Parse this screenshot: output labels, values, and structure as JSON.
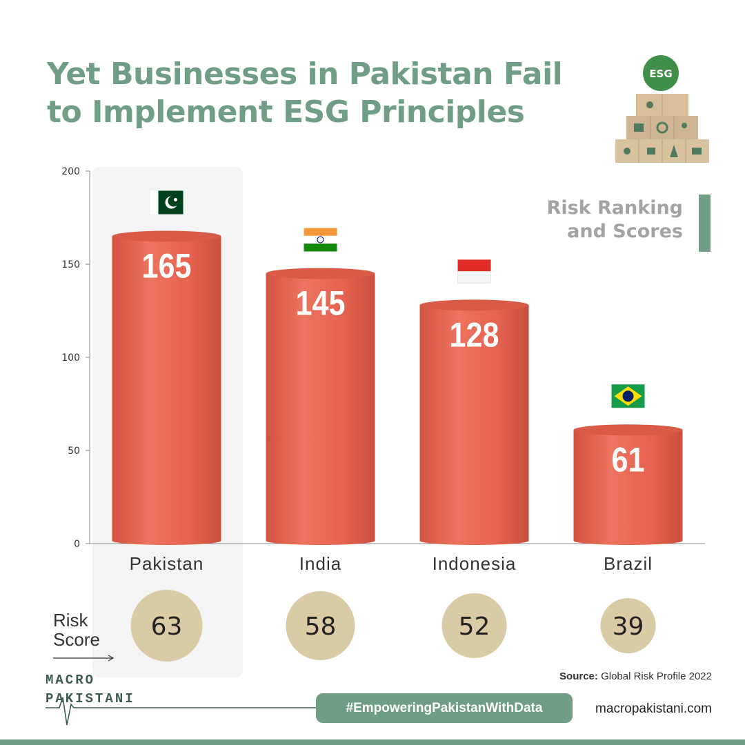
{
  "title": {
    "line1": "Yet Businesses in Pakistan Fail",
    "line2": "to Implement ESG Principles"
  },
  "subtitle": {
    "line1": "Risk Ranking",
    "line2": "and Scores"
  },
  "esg_image": {
    "badge": "ESG",
    "icon": "esg-wooden-blocks-image"
  },
  "colors": {
    "accent": "#6f9d85",
    "bar": "#e2624f",
    "bar_top": "#d85a47",
    "risk_circle": "#d8cba6",
    "highlight": "#f4f4f4"
  },
  "chart_data": {
    "type": "bar",
    "categories": [
      "Pakistan",
      "India",
      "Indonesia",
      "Brazil"
    ],
    "series": [
      {
        "values": [
          165,
          145,
          128,
          61
        ]
      }
    ],
    "data_labels": [
      "165",
      "145",
      "128",
      "61"
    ],
    "flags": [
      "pakistan-flag-icon",
      "india-flag-icon",
      "indonesia-flag-icon",
      "brazil-flag-icon"
    ],
    "ylim": [
      0,
      200
    ],
    "yticks": [
      0,
      50,
      100,
      150,
      200
    ],
    "grid": false,
    "title": "",
    "xlabel": "",
    "ylabel": ""
  },
  "risk_score": {
    "label_line1": "Risk",
    "label_line2": "Score",
    "values": [
      "63",
      "58",
      "52",
      "39"
    ]
  },
  "source": {
    "label": "Source:",
    "text": " Global Risk Profile 2022"
  },
  "logo": {
    "line1": "MACRO",
    "line2": "PAKISTANI"
  },
  "hashtag": "#EmpoweringPakistanWithData",
  "website": "macropakistani.com"
}
